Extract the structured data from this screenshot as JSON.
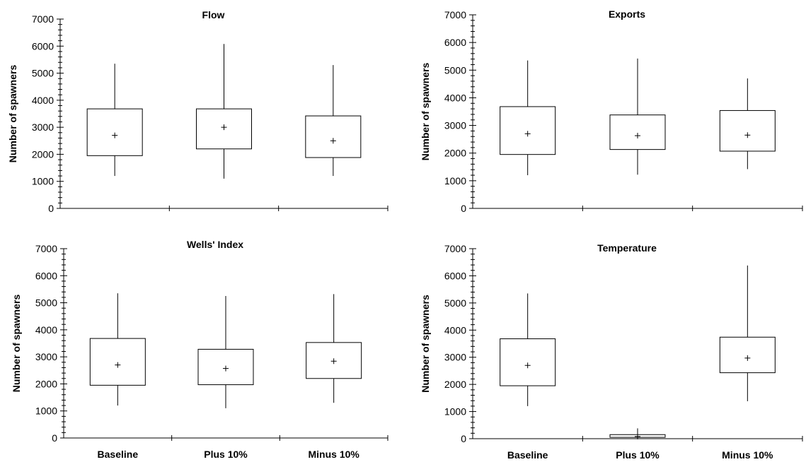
{
  "chart_data": [
    {
      "type": "box",
      "title": "Flow",
      "ylabel": "Number of spawners",
      "ylim": [
        0,
        7000
      ],
      "yticks": [
        0,
        1000,
        2000,
        3000,
        4000,
        5000,
        6000,
        7000
      ],
      "categories": [
        "Baseline",
        "Plus 10%",
        "Minus 10%"
      ],
      "show_category_labels": false,
      "boxes": [
        {
          "min": 1200,
          "q1": 1950,
          "q3": 3680,
          "max": 5350,
          "mean": 2700
        },
        {
          "min": 1100,
          "q1": 2200,
          "q3": 3680,
          "max": 6080,
          "mean": 3000
        },
        {
          "min": 1200,
          "q1": 1880,
          "q3": 3420,
          "max": 5300,
          "mean": 2500
        }
      ]
    },
    {
      "type": "box",
      "title": "Exports",
      "ylabel": "Number of spawners",
      "ylim": [
        0,
        7000
      ],
      "yticks": [
        0,
        1000,
        2000,
        3000,
        4000,
        5000,
        6000,
        7000
      ],
      "categories": [
        "Baseline",
        "Plus 10%",
        "Minus 10%"
      ],
      "show_category_labels": false,
      "boxes": [
        {
          "min": 1200,
          "q1": 1950,
          "q3": 3680,
          "max": 5350,
          "mean": 2700
        },
        {
          "min": 1220,
          "q1": 2130,
          "q3": 3380,
          "max": 5420,
          "mean": 2630
        },
        {
          "min": 1420,
          "q1": 2070,
          "q3": 3540,
          "max": 4700,
          "mean": 2650
        }
      ]
    },
    {
      "type": "box",
      "title": "Wells' Index",
      "ylabel": "Number of spawners",
      "ylim": [
        0,
        7000
      ],
      "yticks": [
        0,
        1000,
        2000,
        3000,
        4000,
        5000,
        6000,
        7000
      ],
      "categories": [
        "Baseline",
        "Plus 10%",
        "Minus 10%"
      ],
      "show_category_labels": true,
      "boxes": [
        {
          "min": 1200,
          "q1": 1950,
          "q3": 3680,
          "max": 5350,
          "mean": 2700
        },
        {
          "min": 1100,
          "q1": 1970,
          "q3": 3280,
          "max": 5250,
          "mean": 2570
        },
        {
          "min": 1300,
          "q1": 2200,
          "q3": 3530,
          "max": 5320,
          "mean": 2840
        }
      ]
    },
    {
      "type": "box",
      "title": "Temperature",
      "ylabel": "Number of spawners",
      "ylim": [
        0,
        7000
      ],
      "yticks": [
        0,
        1000,
        2000,
        3000,
        4000,
        5000,
        6000,
        7000
      ],
      "categories": [
        "Baseline",
        "Plus 10%",
        "Minus 10%"
      ],
      "show_category_labels": true,
      "boxes": [
        {
          "min": 1200,
          "q1": 1950,
          "q3": 3680,
          "max": 5350,
          "mean": 2700
        },
        {
          "min": 0,
          "q1": 50,
          "q3": 150,
          "max": 380,
          "mean": 80
        },
        {
          "min": 1380,
          "q1": 2430,
          "q3": 3740,
          "max": 6380,
          "mean": 2970
        }
      ]
    }
  ]
}
